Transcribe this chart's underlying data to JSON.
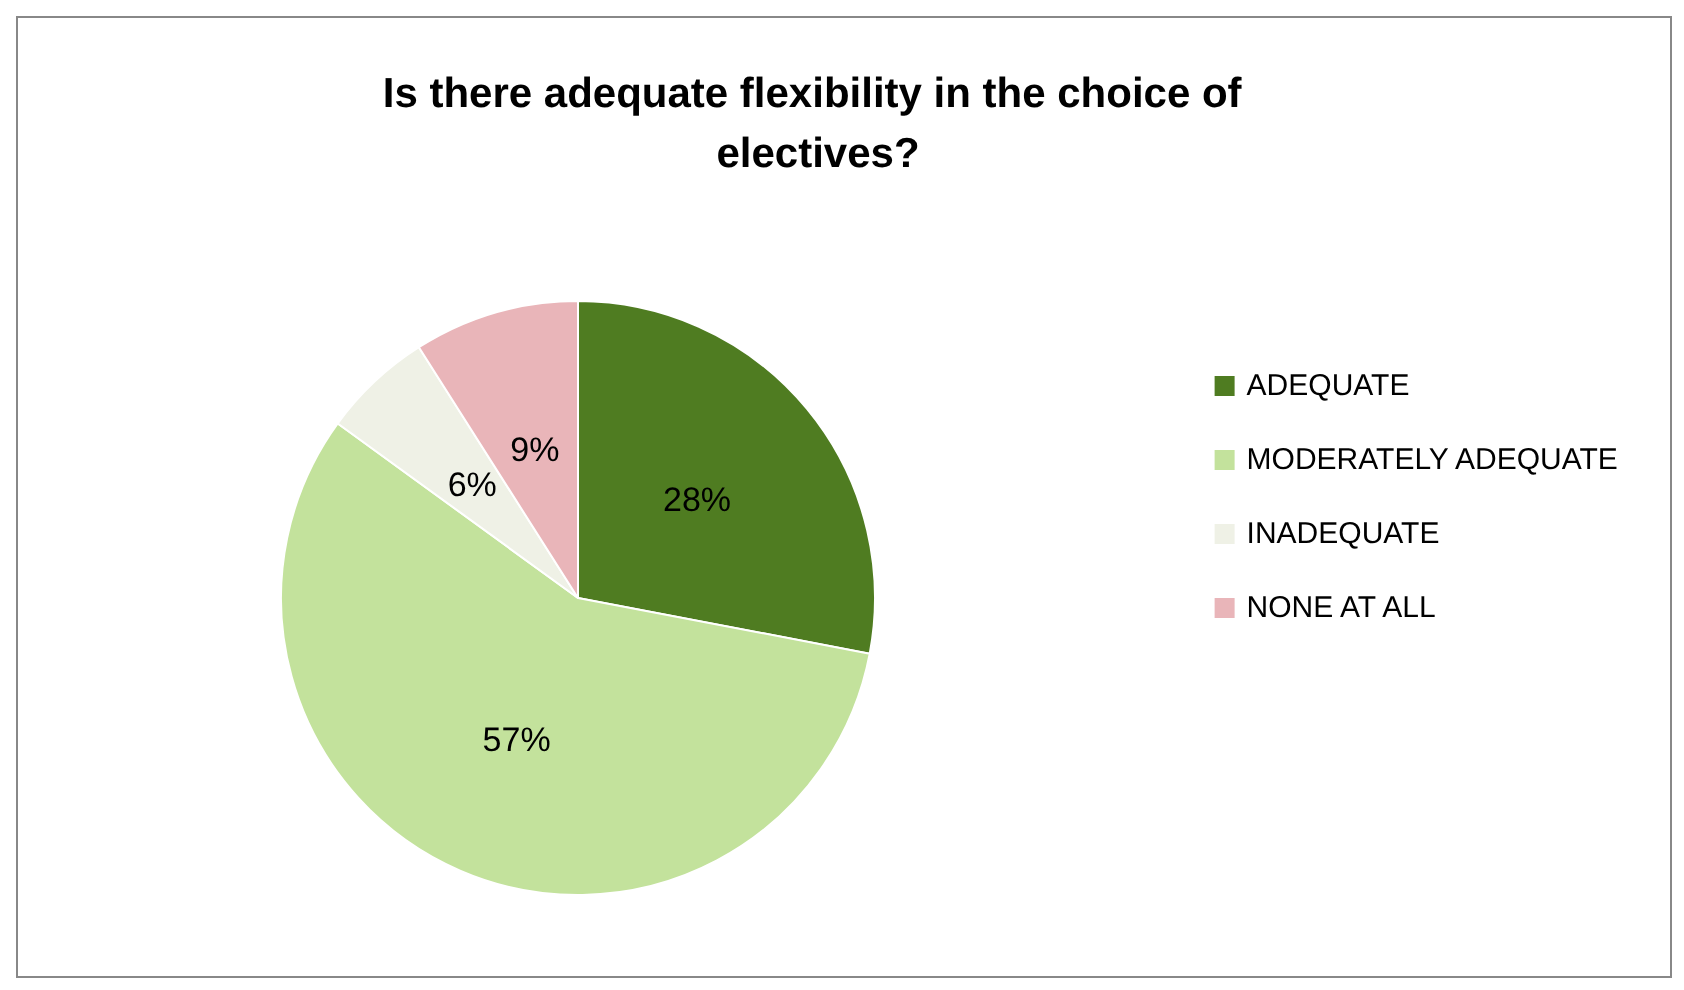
{
  "chart_data": {
    "type": "pie",
    "title": "Is there adequate flexibility in the choice of electives?",
    "categories": [
      "ADEQUATE",
      "MODERATELY ADEQUATE",
      "INADEQUATE",
      "NONE AT ALL"
    ],
    "values": [
      28,
      57,
      6,
      9
    ],
    "colors": [
      "#4f7c21",
      "#c3e29c",
      "#eff1e6",
      "#e9b5b9"
    ],
    "value_labels": [
      "28%",
      "57%",
      "6%",
      "9%"
    ],
    "legend": "right"
  }
}
